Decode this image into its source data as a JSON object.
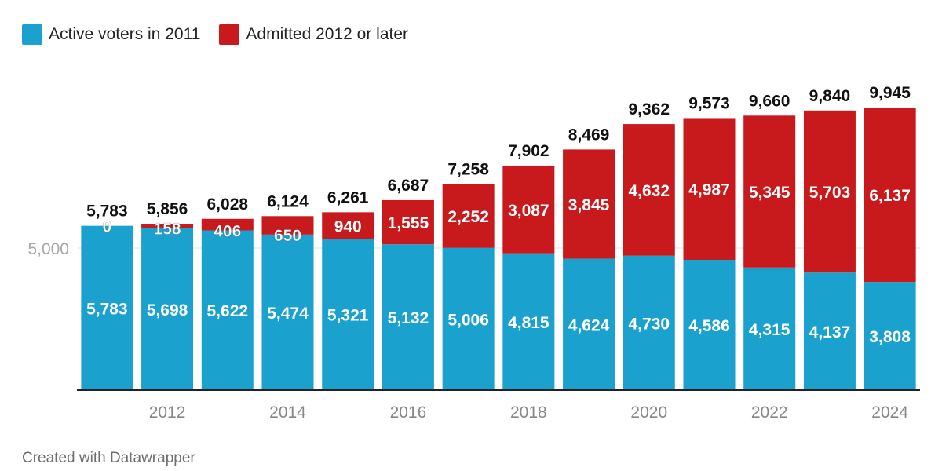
{
  "colors": {
    "active": "#1ba1cd",
    "admitted": "#c8191d",
    "grid": "#e3e3e3",
    "axis": "#222222",
    "tick": "#888888"
  },
  "legend": [
    {
      "key": "active",
      "label": "Active voters in 2011"
    },
    {
      "key": "admitted",
      "label": "Admitted 2012 or later"
    }
  ],
  "footer": "Created with Datawrapper",
  "chart_data": {
    "type": "bar",
    "stacked": true,
    "x": [
      2011,
      2012,
      2013,
      2014,
      2015,
      2016,
      2017,
      2018,
      2019,
      2020,
      2021,
      2022,
      2023,
      2024
    ],
    "x_tick_labels": [
      "2012",
      "2014",
      "2016",
      "2018",
      "2020",
      "2022",
      "2024"
    ],
    "series": [
      {
        "name": "Active voters in 2011",
        "values": [
          5783,
          5698,
          5622,
          5474,
          5321,
          5132,
          5006,
          4815,
          4624,
          4730,
          4586,
          4315,
          4137,
          3808
        ]
      },
      {
        "name": "Admitted 2012 or later",
        "values": [
          0,
          158,
          406,
          650,
          940,
          1555,
          2252,
          3087,
          3845,
          4632,
          4987,
          5345,
          5703,
          6137
        ]
      }
    ],
    "totals": [
      5783,
      5856,
      6028,
      6124,
      6261,
      6687,
      7258,
      7902,
      8469,
      9362,
      9573,
      9660,
      9840,
      9945
    ],
    "y_ticks": [
      5000
    ],
    "y_tick_labels": [
      "5,000"
    ],
    "ylim": [
      0,
      10500
    ],
    "grid": true,
    "legend_position": "top-left"
  }
}
